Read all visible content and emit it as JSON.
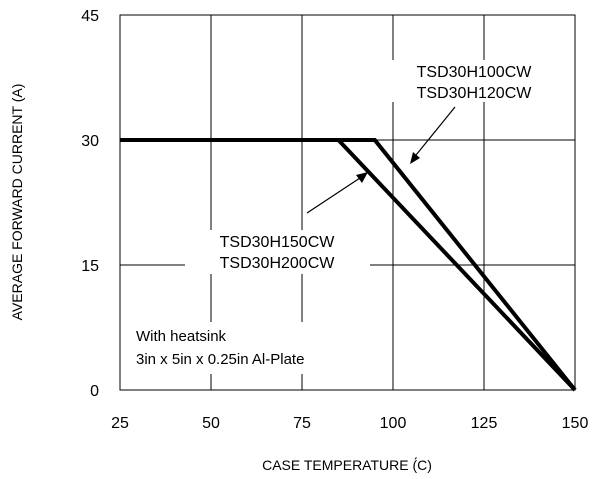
{
  "chart_data": {
    "type": "line",
    "xlabel": "CASE TEMPERATURE (́C)",
    "ylabel": "AVERAGE FORWARD CURRENT (A)",
    "xlim": [
      25,
      150
    ],
    "ylim": [
      0,
      45
    ],
    "x_ticks": [
      "25",
      "50",
      "75",
      "100",
      "125",
      "150"
    ],
    "y_ticks": [
      "0",
      "15",
      "30",
      "45"
    ],
    "x_tick_values": [
      25,
      50,
      75,
      100,
      125,
      150
    ],
    "y_tick_values": [
      0,
      15,
      30,
      45
    ],
    "grid": true,
    "series": [
      {
        "x": [
          25,
          95,
          150
        ],
        "y": [
          30,
          30,
          0
        ]
      },
      {
        "x": [
          25,
          85,
          150
        ],
        "y": [
          30,
          30,
          0
        ]
      }
    ],
    "annotations": {
      "upper": {
        "lines": [
          "TSD30H100CW",
          "TSD30H120CW"
        ]
      },
      "lower": {
        "lines": [
          "TSD30H150CW",
          "TSD30H200CW"
        ]
      },
      "note": {
        "lines": [
          "With heatsink",
          "3in x 5in x 0.25in Al-Plate"
        ]
      }
    }
  }
}
